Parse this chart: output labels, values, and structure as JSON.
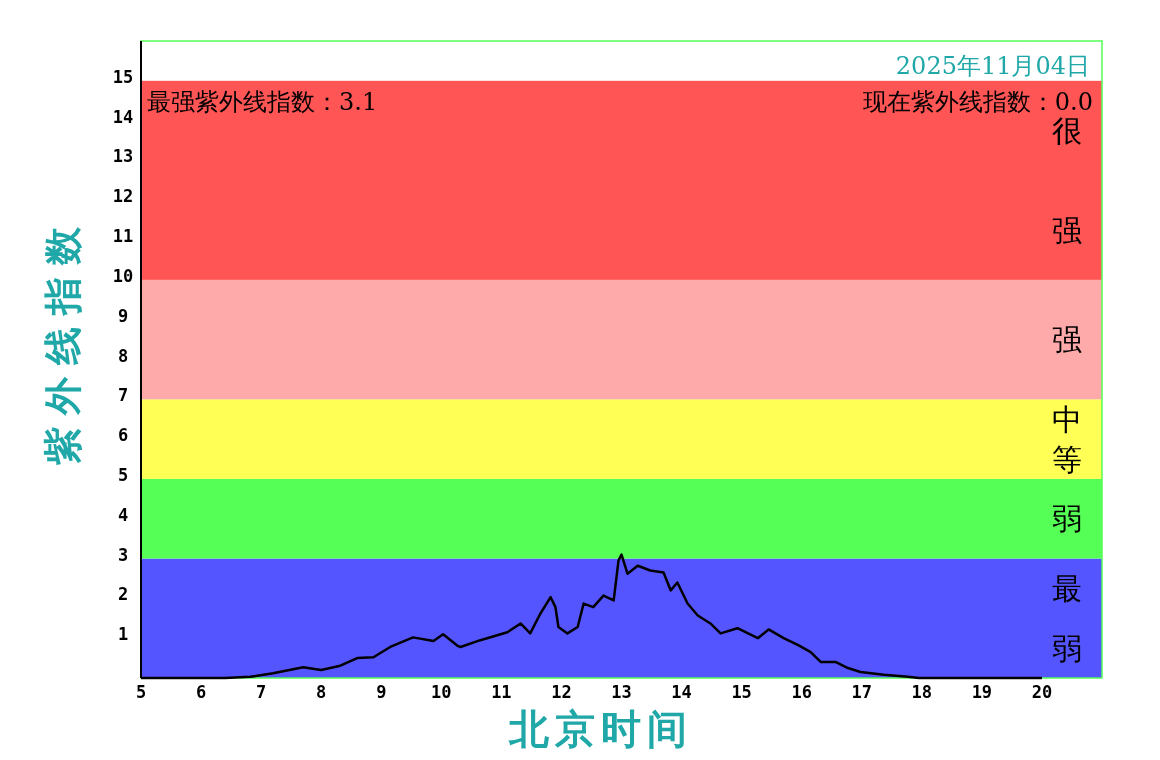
{
  "chart_data": {
    "type": "line",
    "xlabel": "北京时间",
    "ylabel": "紫外线指数",
    "x": [
      5,
      6.4,
      6.82,
      7.2,
      7.7,
      8.0,
      8.3,
      8.6,
      8.87,
      9.15,
      9.53,
      9.87,
      10.03,
      10.28,
      10.32,
      10.65,
      11.1,
      11.32,
      11.48,
      11.65,
      11.82,
      11.9,
      11.95,
      12.1,
      12.27,
      12.37,
      12.53,
      12.7,
      12.87,
      12.95,
      13.0,
      13.1,
      13.27,
      13.48,
      13.7,
      13.82,
      13.93,
      14.1,
      14.27,
      14.48,
      14.65,
      14.93,
      15.27,
      15.45,
      15.7,
      15.95,
      16.15,
      16.32,
      16.57,
      16.77,
      16.98,
      17.37,
      17.77,
      17.95,
      20
    ],
    "series": [
      {
        "color": "#000000",
        "values": [
          0,
          0,
          0.03,
          0.12,
          0.27,
          0.2,
          0.3,
          0.5,
          0.52,
          0.78,
          1.02,
          0.93,
          1.1,
          0.8,
          0.78,
          0.95,
          1.15,
          1.37,
          1.12,
          1.62,
          2.03,
          1.78,
          1.28,
          1.12,
          1.28,
          1.87,
          1.78,
          2.07,
          1.95,
          2.95,
          3.1,
          2.62,
          2.82,
          2.7,
          2.65,
          2.2,
          2.4,
          1.87,
          1.57,
          1.37,
          1.12,
          1.25,
          1.0,
          1.22,
          1.0,
          0.82,
          0.65,
          0.4,
          0.4,
          0.25,
          0.15,
          0.08,
          0.03,
          0,
          0
        ]
      }
    ],
    "xlim": [
      5,
      21
    ],
    "xticks": [
      5,
      6,
      7,
      8,
      9,
      10,
      11,
      12,
      13,
      14,
      15,
      16,
      17,
      18,
      19,
      20
    ],
    "ylim": [
      0,
      16
    ],
    "yticks": [
      1,
      2,
      3,
      4,
      5,
      6,
      7,
      8,
      9,
      10,
      11,
      12,
      13,
      14,
      15
    ],
    "bands": [
      {
        "axis": "y",
        "from": 0,
        "to": 3,
        "label": "最弱",
        "color": "#5555ff"
      },
      {
        "axis": "y",
        "from": 3,
        "to": 5,
        "label": "弱",
        "color": "#55ff55"
      },
      {
        "axis": "y",
        "from": 5,
        "to": 7,
        "label": "中等",
        "color": "#ffff55"
      },
      {
        "axis": "y",
        "from": 7,
        "to": 10,
        "label": "强",
        "color": "#ffaaaa"
      },
      {
        "axis": "y",
        "from": 10,
        "to": 15,
        "label": "很强",
        "color": "#ff5555"
      }
    ],
    "annotations": [
      "2025年11月04日",
      "最强紫外线指数：3.1",
      "现在紫外线指数：0.0"
    ],
    "grid": false,
    "line_style": "solid"
  }
}
